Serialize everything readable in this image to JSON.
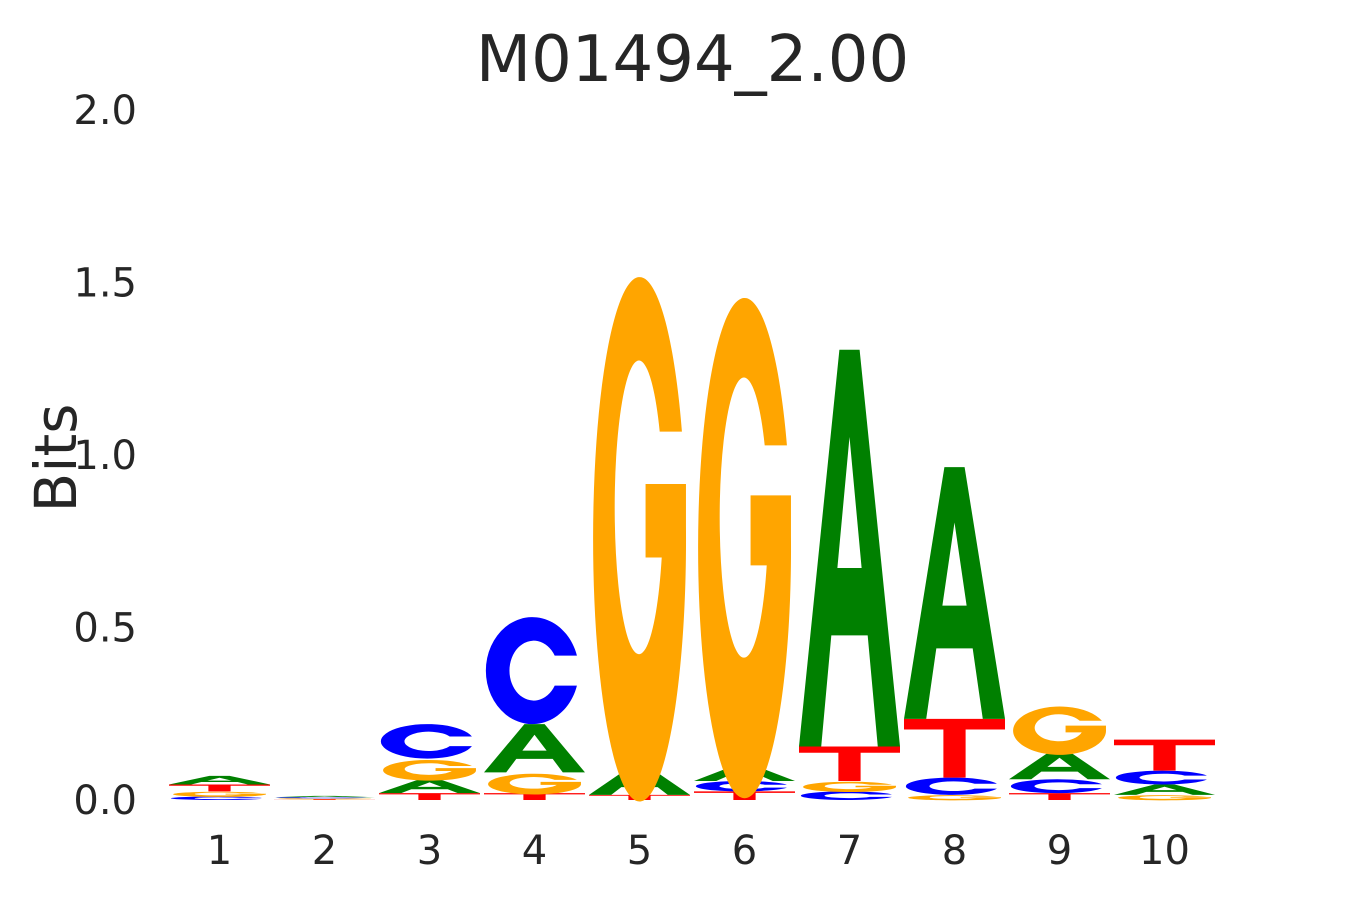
{
  "chart_data": {
    "type": "sequence-logo",
    "title": "M01494_2.00",
    "ylabel": "Bits",
    "xlabel": "",
    "ylim": [
      0,
      2
    ],
    "yticks": [
      "0.0",
      "0.5",
      "1.0",
      "1.5",
      "2.0"
    ],
    "positions": [
      "1",
      "2",
      "3",
      "4",
      "5",
      "6",
      "7",
      "8",
      "9",
      "10"
    ],
    "colors": {
      "A": "#008000",
      "C": "#0000ff",
      "G": "#ffa500",
      "T": "#ff0000"
    },
    "columns": [
      [
        {
          "base": "C",
          "bits": 0.01
        },
        {
          "base": "G",
          "bits": 0.015
        },
        {
          "base": "T",
          "bits": 0.02
        },
        {
          "base": "A",
          "bits": 0.025
        }
      ],
      [
        {
          "base": "T",
          "bits": 0.002
        },
        {
          "base": "G",
          "bits": 0.003
        },
        {
          "base": "C",
          "bits": 0.003
        },
        {
          "base": "A",
          "bits": 0.004
        }
      ],
      [
        {
          "base": "T",
          "bits": 0.02
        },
        {
          "base": "A",
          "bits": 0.04
        },
        {
          "base": "G",
          "bits": 0.06
        },
        {
          "base": "C",
          "bits": 0.1
        }
      ],
      [
        {
          "base": "T",
          "bits": 0.02
        },
        {
          "base": "G",
          "bits": 0.06
        },
        {
          "base": "A",
          "bits": 0.14
        },
        {
          "base": "C",
          "bits": 0.31
        }
      ],
      [
        {
          "base": "T",
          "bits": 0.015
        },
        {
          "base": "A",
          "bits": 0.08
        },
        {
          "base": "G",
          "bits": 1.52
        }
      ],
      [
        {
          "base": "T",
          "bits": 0.025
        },
        {
          "base": "C",
          "bits": 0.03
        },
        {
          "base": "A",
          "bits": 0.045
        },
        {
          "base": "G",
          "bits": 1.45
        }
      ],
      [
        {
          "base": "C",
          "bits": 0.025
        },
        {
          "base": "G",
          "bits": 0.03
        },
        {
          "base": "T",
          "bits": 0.1
        },
        {
          "base": "A",
          "bits": 1.15
        }
      ],
      [
        {
          "base": "G",
          "bits": 0.015
        },
        {
          "base": "C",
          "bits": 0.05
        },
        {
          "base": "T",
          "bits": 0.17
        },
        {
          "base": "A",
          "bits": 0.73
        }
      ],
      [
        {
          "base": "T",
          "bits": 0.02
        },
        {
          "base": "C",
          "bits": 0.04
        },
        {
          "base": "A",
          "bits": 0.08
        },
        {
          "base": "G",
          "bits": 0.14
        }
      ],
      [
        {
          "base": "G",
          "bits": 0.015
        },
        {
          "base": "A",
          "bits": 0.03
        },
        {
          "base": "C",
          "bits": 0.04
        },
        {
          "base": "T",
          "bits": 0.09
        }
      ]
    ]
  }
}
